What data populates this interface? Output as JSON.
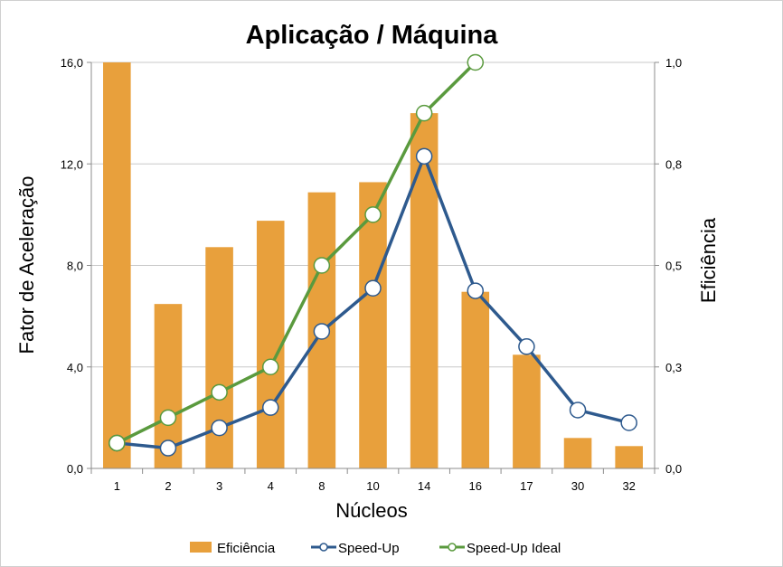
{
  "chart_data": {
    "type": "bar+line",
    "title": "Aplicação / Máquina",
    "xlabel": "Núcleos",
    "ylabel_left": "Fator de Aceleração",
    "ylabel_right": "Eficiência",
    "categories": [
      "1",
      "2",
      "3",
      "4",
      "8",
      "10",
      "14",
      "16",
      "17",
      "30",
      "32"
    ],
    "y_left": {
      "min": 0,
      "max": 16,
      "ticks": [
        "0,0",
        "4,0",
        "8,0",
        "12,0",
        "16,0"
      ]
    },
    "y_right": {
      "min": 0,
      "max": 1,
      "ticks": [
        "0,0",
        "0,3",
        "0,5",
        "0,8",
        "1,0"
      ]
    },
    "grid": true,
    "legend_position": "bottom",
    "series": [
      {
        "name": "Eficiência",
        "kind": "bar",
        "axis": "right",
        "color": "#E8A03C",
        "values": [
          1.0,
          0.405,
          0.545,
          0.61,
          0.68,
          0.705,
          0.875,
          0.435,
          0.28,
          0.075,
          0.055
        ]
      },
      {
        "name": "Speed-Up",
        "kind": "line",
        "axis": "left",
        "color": "#2E5A8E",
        "values": [
          1.0,
          0.8,
          1.6,
          2.4,
          5.4,
          7.1,
          12.3,
          7.0,
          4.8,
          2.3,
          1.8
        ]
      },
      {
        "name": "Speed-Up Ideal",
        "kind": "line",
        "axis": "left",
        "color": "#5A9A3E",
        "values": [
          1.0,
          2.0,
          3.0,
          4.0,
          8.0,
          10.0,
          14.0,
          16.0,
          null,
          null,
          null
        ]
      }
    ]
  }
}
